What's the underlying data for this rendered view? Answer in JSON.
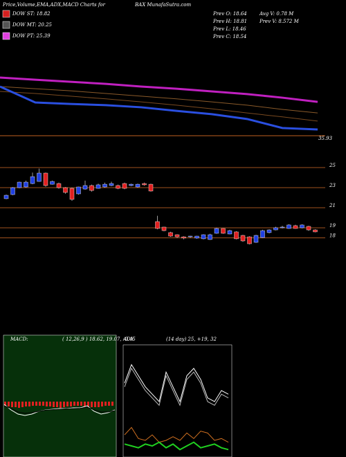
{
  "header": {
    "title": "Price,Volume,EMA,ADX,MACD Charts for",
    "symbol": "BAX  MunafaSutra.com"
  },
  "legend": [
    {
      "name": "DOW ST: 18.82",
      "color": "#d42020"
    },
    {
      "name": "DOW MT: 20.25",
      "color": "#555555"
    },
    {
      "name": "DOW PT: 25.39",
      "color": "#e040e0"
    }
  ],
  "stats": [
    "Prev  O: 18.64",
    "Prev  H: 18.81",
    "Prev  L: 18.46",
    "Prev  C: 18.54",
    "Avg  V: 0.78  M",
    "Prev  V: 8.572  M"
  ],
  "chart_data": [
    {
      "type": "line",
      "label": "35.93",
      "ylim": [
        0,
        30
      ],
      "series": [
        {
          "name": null,
          "color": "#c020c0",
          "width": 3,
          "values": [
            20.3,
            19.6,
            18.9,
            18.2,
            17.3,
            16.6,
            15.7,
            14.8,
            13.6,
            12.2
          ]
        },
        {
          "name": null,
          "color": "#8a5a2a",
          "width": 1,
          "values": [
            17.3,
            16.6,
            15.9,
            15.0,
            14.1,
            13.2,
            12.2,
            11.1,
            9.7,
            8.5
          ]
        },
        {
          "name": null,
          "color": "#7a4a20",
          "width": 1,
          "values": [
            15.7,
            15.0,
            14.1,
            13.2,
            12.2,
            11.1,
            9.9,
            8.5,
            7.2,
            5.8
          ]
        },
        {
          "name": null,
          "color": "#2a4fe0",
          "width": 3,
          "values": [
            17.3,
            12.0,
            11.5,
            11.1,
            10.4,
            9.2,
            8.1,
            6.5,
            3.5,
            3.0
          ]
        }
      ]
    },
    {
      "type": "candlestick",
      "ylim": [
        16.86,
        25.83
      ],
      "yticks": [
        25,
        23,
        21,
        19,
        18
      ],
      "up_color": "#2040e0",
      "down_color": "#e02020",
      "open": [
        21.9,
        22.31,
        23.0,
        23.07,
        23.41,
        23.62,
        24.45,
        23.34,
        23.41,
        23.0,
        22.93,
        22.38,
        22.86,
        23.21,
        22.93,
        23.07,
        23.21,
        23.21,
        23.41,
        23.21,
        23.07,
        23.41,
        23.34,
        19.62,
        19.07,
        18.52,
        18.31,
        18.1,
        18.1,
        17.97,
        17.9,
        17.83,
        18.45,
        18.93,
        18.38,
        18.59,
        18.24,
        18.1,
        17.55,
        18.03,
        18.52,
        18.79,
        19.07,
        18.93,
        19.21,
        19.0,
        19.14,
        18.79
      ],
      "high": [
        22.3,
        23.05,
        23.6,
        23.7,
        24.5,
        24.9,
        24.5,
        23.7,
        23.5,
        23.05,
        23.0,
        23.1,
        23.7,
        23.3,
        23.4,
        23.5,
        23.6,
        23.3,
        23.5,
        23.4,
        23.4,
        23.5,
        23.4,
        20.2,
        19.1,
        18.6,
        18.35,
        18.15,
        18.2,
        18.2,
        18.35,
        18.4,
        19.0,
        18.95,
        18.8,
        18.65,
        18.3,
        18.15,
        18.3,
        18.8,
        18.85,
        19.1,
        19.2,
        19.35,
        19.3,
        19.35,
        19.2,
        18.85
      ],
      "low": [
        21.85,
        22.25,
        22.95,
        23.0,
        23.35,
        23.6,
        23.1,
        23.3,
        22.9,
        22.4,
        21.69,
        22.3,
        22.8,
        22.6,
        22.9,
        23.0,
        23.15,
        22.85,
        22.85,
        23.15,
        23.0,
        23.2,
        22.6,
        18.85,
        18.65,
        18.1,
        18.0,
        17.85,
        18.0,
        17.9,
        17.85,
        17.8,
        18.4,
        18.4,
        18.35,
        17.85,
        17.6,
        17.35,
        17.5,
        18.0,
        18.45,
        18.75,
        18.95,
        18.9,
        18.9,
        18.95,
        18.7,
        18.55
      ],
      "close": [
        22.24,
        23.0,
        23.55,
        23.55,
        24.1,
        24.45,
        23.21,
        23.62,
        23.0,
        22.52,
        21.83,
        23.07,
        23.21,
        22.72,
        23.28,
        23.34,
        23.41,
        22.93,
        22.93,
        23.34,
        23.34,
        23.28,
        22.66,
        18.93,
        18.72,
        18.17,
        18.1,
        17.97,
        18.17,
        18.17,
        18.31,
        18.31,
        18.93,
        18.45,
        18.72,
        17.9,
        17.69,
        17.41,
        18.24,
        18.72,
        18.79,
        19.0,
        19.07,
        19.28,
        18.93,
        19.28,
        18.79,
        18.59
      ]
    },
    {
      "type": "macd",
      "title": "MACD:",
      "subtitle": "( 12,26,9 ) 18.62, 19.07, -0.45",
      "ylim": [
        -4,
        4
      ],
      "histogram": [
        -0.3,
        -0.35,
        -0.4,
        -0.4,
        -0.45,
        -0.4,
        -0.35,
        -0.35,
        -0.3,
        -0.3,
        -0.3,
        -0.3,
        -0.35,
        -0.35,
        -0.4,
        -0.4,
        -0.45,
        -0.4,
        -0.35,
        -0.35,
        -0.3,
        -0.3,
        -0.3,
        -0.35,
        -0.35,
        -0.4,
        -0.4,
        -0.4,
        -0.35,
        -0.3,
        -0.3,
        -0.3
      ],
      "series": [
        {
          "name": null,
          "color": "#ffffff",
          "values": [
            -0.2,
            -0.6,
            -0.9,
            -1.0,
            -0.9,
            -0.7,
            -0.6,
            -0.55,
            -0.5,
            -0.5,
            -0.45,
            -0.45,
            -0.3,
            -0.7,
            -0.9,
            -0.8,
            -0.6
          ]
        },
        {
          "name": null,
          "color": "#000000",
          "values": [
            -0.3,
            -0.5,
            -0.75,
            -0.85,
            -0.8,
            -0.7,
            -0.62,
            -0.58,
            -0.55,
            -0.52,
            -0.5,
            -0.48,
            -0.4,
            -0.6,
            -0.75,
            -0.75,
            -0.65
          ]
        }
      ]
    },
    {
      "type": "adx",
      "title": "ADX",
      "subtitle": "(14  day) 25, +19, 32",
      "ylim": [
        0,
        60
      ],
      "series": [
        {
          "name": null,
          "color": "#ffffff",
          "values": [
            40,
            50,
            44,
            38,
            34,
            30,
            46,
            38,
            30,
            44,
            48,
            42,
            32,
            30,
            36,
            34
          ]
        },
        {
          "name": null,
          "color": "#bbbbbb",
          "values": [
            38,
            48,
            42,
            36,
            32,
            28,
            44,
            36,
            28,
            42,
            46,
            40,
            30,
            28,
            34,
            32
          ]
        },
        {
          "name": null,
          "color": "#d07020",
          "values": [
            12,
            16,
            10,
            9,
            12,
            8,
            9,
            11,
            9,
            13,
            10,
            14,
            13,
            9,
            10,
            8
          ]
        },
        {
          "name": null,
          "color": "#20d020",
          "values": [
            7,
            6,
            5,
            7,
            6,
            8,
            5,
            7,
            4,
            6,
            8,
            5,
            6,
            7,
            5,
            4
          ]
        }
      ]
    }
  ]
}
